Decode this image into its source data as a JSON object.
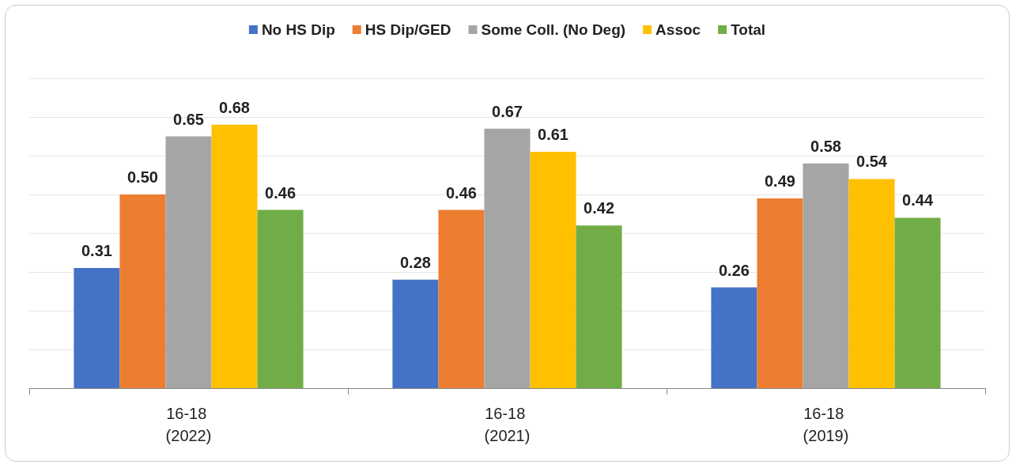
{
  "chart_data": {
    "type": "bar",
    "categories": [
      "16-18 (2022)",
      "16-18 (2021)",
      "16-18 (2019)"
    ],
    "series": [
      {
        "name": "No HS Dip",
        "color": "#4472c4",
        "values": [
          0.31,
          0.28,
          0.26
        ],
        "value_labels": [
          "0.31",
          "0.28",
          "0.26"
        ]
      },
      {
        "name": "HS Dip/GED",
        "color": "#ed7d31",
        "values": [
          0.5,
          0.46,
          0.49
        ],
        "value_labels": [
          "0.50",
          "0.46",
          "0.49"
        ]
      },
      {
        "name": "Some Coll. (No Deg)",
        "color": "#a5a5a5",
        "values": [
          0.65,
          0.67,
          0.58
        ],
        "value_labels": [
          "0.65",
          "0.67",
          "0.58"
        ]
      },
      {
        "name": "Assoc",
        "color": "#ffc000",
        "values": [
          0.68,
          0.61,
          0.54
        ],
        "value_labels": [
          "0.68",
          "0.61",
          "0.54"
        ]
      },
      {
        "name": "Total",
        "color": "#70ad47",
        "values": [
          0.46,
          0.42,
          0.44
        ],
        "value_labels": [
          "0.46",
          "0.42",
          "0.44"
        ]
      }
    ],
    "ylim": [
      0,
      0.8
    ],
    "yticks": [
      {
        "value": 0,
        "label": null
      },
      {
        "value": 0.1,
        "label": null
      },
      {
        "value": 0.2,
        "label": null
      },
      {
        "value": 0.3,
        "label": null
      },
      {
        "value": 0.4,
        "label": null
      },
      {
        "value": 0.5,
        "label": null
      },
      {
        "value": 0.6,
        "label": null
      },
      {
        "value": 0.7,
        "label": null
      },
      {
        "value": 0.8,
        "label": null
      }
    ],
    "tick_labels": "x",
    "grid": "y",
    "legend": "top"
  }
}
